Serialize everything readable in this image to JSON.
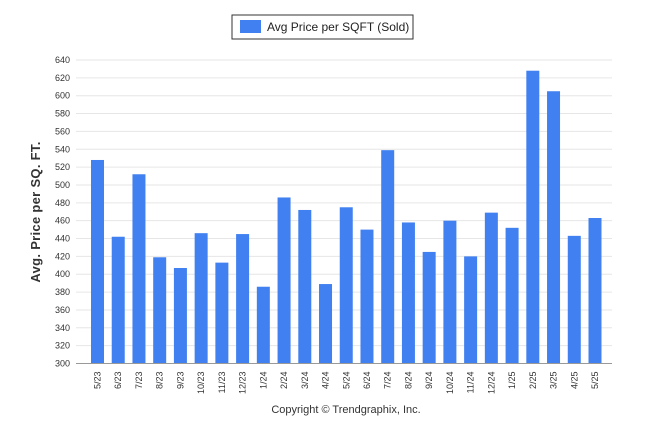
{
  "chart_data": {
    "type": "bar",
    "title": "",
    "xlabel": "",
    "ylabel": "Avg. Price per SQ. FT.",
    "ylim": [
      300,
      640
    ],
    "ytick_step": 20,
    "grid": true,
    "legend_position": "top-center",
    "credit": "Copyright © Trendgraphix, Inc.",
    "categories": [
      "5/23",
      "6/23",
      "7/23",
      "8/23",
      "9/23",
      "10/23",
      "11/23",
      "12/23",
      "1/24",
      "2/24",
      "3/24",
      "4/24",
      "5/24",
      "6/24",
      "7/24",
      "8/24",
      "9/24",
      "10/24",
      "11/24",
      "12/24",
      "1/25",
      "2/25",
      "3/25",
      "4/25",
      "5/25"
    ],
    "series": [
      {
        "name": "Avg Price per SQFT (Sold)",
        "color": "#4080f0",
        "values": [
          528,
          442,
          512,
          419,
          407,
          446,
          413,
          445,
          386,
          486,
          472,
          389,
          475,
          450,
          539,
          458,
          425,
          460,
          420,
          469,
          452,
          628,
          605,
          443,
          463
        ]
      }
    ]
  }
}
